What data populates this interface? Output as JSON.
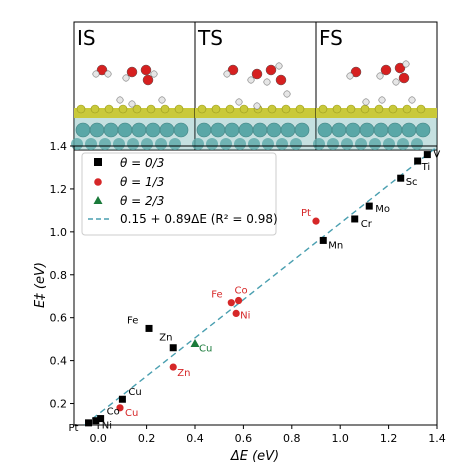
{
  "panels": [
    {
      "label": "IS"
    },
    {
      "label": "TS"
    },
    {
      "label": "FS"
    }
  ],
  "colors": {
    "series_0": "#000000",
    "series_1": "#d62728",
    "series_2": "#1a7a3a",
    "fit": "#4a9fb0",
    "slab_top": "#c9c93a",
    "slab_atom": "#5aa7a7",
    "oxygen": "#d62020",
    "hydrogen": "#e6e6e6",
    "panel_bg": "#ffffff"
  },
  "chart_data": {
    "type": "scatter",
    "xlabel": "ΔE (eV)",
    "ylabel": "E‡ (eV)",
    "xlim": [
      -0.1,
      1.4
    ],
    "ylim": [
      0.1,
      1.4
    ],
    "xticks": [
      "0.0",
      "0.2",
      "0.4",
      "0.6",
      "0.8",
      "1.0",
      "1.2",
      "1.4"
    ],
    "yticks": [
      "0.2",
      "0.4",
      "0.6",
      "0.8",
      "1.0",
      "1.2",
      "1.4"
    ],
    "xtick_values": [
      0.0,
      0.2,
      0.4,
      0.6,
      0.8,
      1.0,
      1.2,
      1.4
    ],
    "ytick_values": [
      0.2,
      0.4,
      0.6,
      0.8,
      1.0,
      1.2,
      1.4
    ],
    "legend_position": "top-left",
    "grid": false,
    "series": [
      {
        "name": "θ = 0/3",
        "marker": "square",
        "points": [
          {
            "label": "Pt",
            "x": -0.04,
            "y": 0.11
          },
          {
            "label": "Ni",
            "x": -0.01,
            "y": 0.12
          },
          {
            "label": "Co",
            "x": 0.01,
            "y": 0.13
          },
          {
            "label": "Cu",
            "x": 0.1,
            "y": 0.22
          },
          {
            "label": "Fe",
            "x": 0.21,
            "y": 0.55
          },
          {
            "label": "Zn",
            "x": 0.31,
            "y": 0.46
          },
          {
            "label": "Mn",
            "x": 0.93,
            "y": 0.96
          },
          {
            "label": "Cr",
            "x": 1.06,
            "y": 1.06
          },
          {
            "label": "Mo",
            "x": 1.12,
            "y": 1.12
          },
          {
            "label": "Sc",
            "x": 1.25,
            "y": 1.25
          },
          {
            "label": "Ti",
            "x": 1.32,
            "y": 1.33
          },
          {
            "label": "V",
            "x": 1.36,
            "y": 1.36
          }
        ]
      },
      {
        "name": "θ = 1/3",
        "marker": "circle",
        "points": [
          {
            "label": "Cu",
            "x": 0.09,
            "y": 0.18
          },
          {
            "label": "Zn",
            "x": 0.31,
            "y": 0.37
          },
          {
            "label": "Fe",
            "x": 0.55,
            "y": 0.67
          },
          {
            "label": "Co",
            "x": 0.58,
            "y": 0.68
          },
          {
            "label": "Ni",
            "x": 0.57,
            "y": 0.62
          },
          {
            "label": "Pt",
            "x": 0.9,
            "y": 1.05
          }
        ]
      },
      {
        "name": "θ = 2/3",
        "marker": "triangle",
        "points": [
          {
            "label": "Cu",
            "x": 0.4,
            "y": 0.48
          }
        ]
      }
    ],
    "fit": {
      "label": "0.15 + 0.89ΔE (R² =  0.98)",
      "intercept": 0.15,
      "slope": 0.89
    }
  }
}
